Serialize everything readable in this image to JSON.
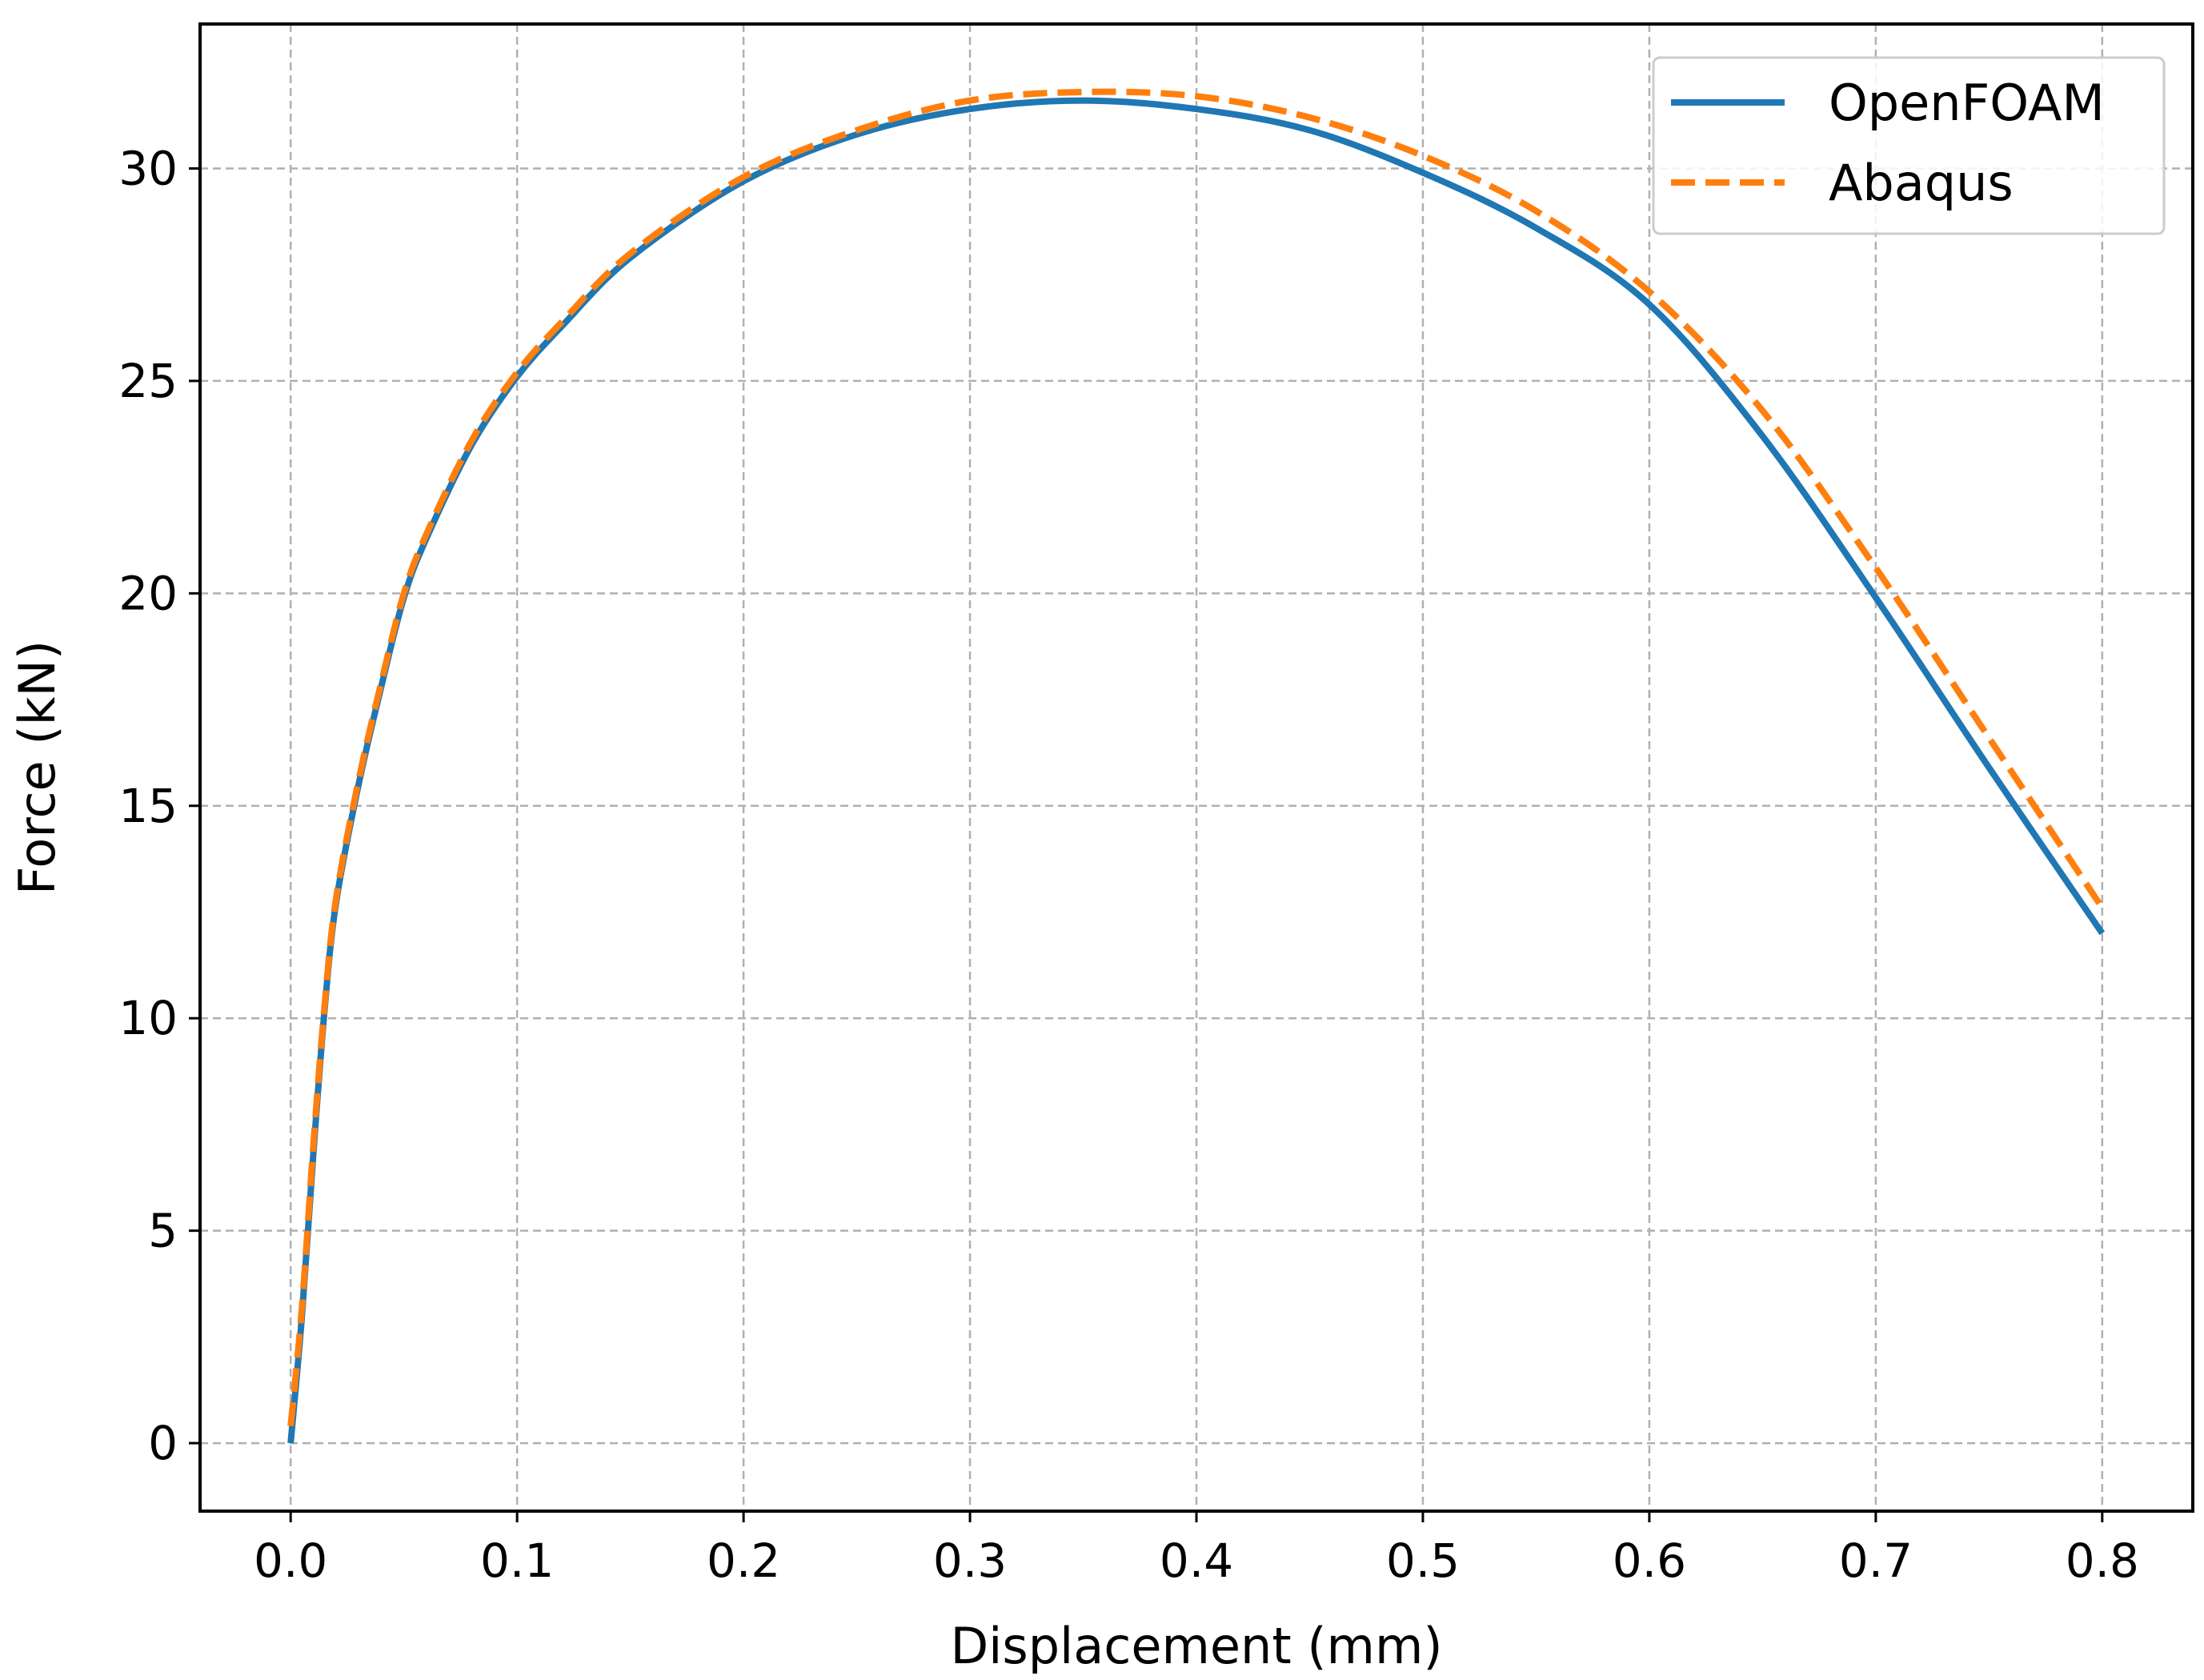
{
  "chart_data": {
    "type": "line",
    "xlabel": "Displacement (mm)",
    "ylabel": "Force (kN)",
    "xlim": [
      -0.04,
      0.84
    ],
    "ylim": [
      -1.6,
      33.4
    ],
    "xticks": [
      0.0,
      0.1,
      0.2,
      0.3,
      0.4,
      0.5,
      0.6,
      0.7,
      0.8
    ],
    "xtick_labels": [
      "0.0",
      "0.1",
      "0.2",
      "0.3",
      "0.4",
      "0.5",
      "0.6",
      "0.7",
      "0.8"
    ],
    "yticks": [
      0,
      5,
      10,
      15,
      20,
      25,
      30
    ],
    "ytick_labels": [
      "0",
      "5",
      "10",
      "15",
      "20",
      "25",
      "30"
    ],
    "grid": true,
    "legend_position": "top-right",
    "series": [
      {
        "name": "OpenFOAM",
        "color": "#1f77b4",
        "style": "solid",
        "x": [
          0.0,
          0.005,
          0.01,
          0.015,
          0.02,
          0.03,
          0.04,
          0.05,
          0.06,
          0.08,
          0.1,
          0.12,
          0.15,
          0.2,
          0.25,
          0.3,
          0.35,
          0.4,
          0.45,
          0.5,
          0.55,
          0.6,
          0.65,
          0.7,
          0.75,
          0.8
        ],
        "y": [
          0.0,
          3.0,
          6.8,
          10.2,
          12.7,
          15.5,
          17.8,
          19.9,
          21.3,
          23.5,
          25.1,
          26.3,
          27.9,
          29.7,
          30.8,
          31.4,
          31.6,
          31.4,
          30.9,
          29.9,
          28.6,
          26.8,
          23.7,
          19.9,
          15.9,
          12.0
        ]
      },
      {
        "name": "Abaqus",
        "color": "#ff7f0e",
        "style": "dashed",
        "x": [
          0.0,
          0.005,
          0.01,
          0.015,
          0.02,
          0.03,
          0.04,
          0.05,
          0.06,
          0.08,
          0.1,
          0.12,
          0.15,
          0.2,
          0.25,
          0.3,
          0.35,
          0.4,
          0.45,
          0.5,
          0.55,
          0.6,
          0.65,
          0.7,
          0.75,
          0.8
        ],
        "y": [
          0.4,
          3.2,
          7.0,
          10.3,
          12.8,
          15.6,
          17.9,
          20.0,
          21.4,
          23.6,
          25.2,
          26.4,
          28.0,
          29.8,
          30.9,
          31.6,
          31.8,
          31.7,
          31.2,
          30.3,
          29.0,
          27.1,
          24.3,
          20.6,
          16.6,
          12.6
        ]
      }
    ]
  }
}
